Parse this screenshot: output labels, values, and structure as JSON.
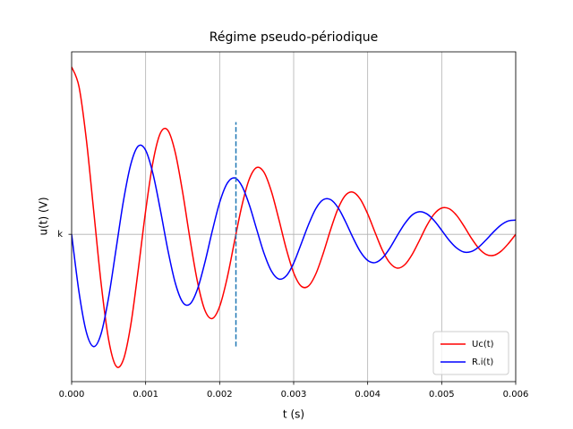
{
  "chart_data": {
    "type": "line",
    "title": "Régime pseudo-périodique",
    "x_label": "t (s)",
    "y_label": "u(t) (V)",
    "x": [
      0,
      0.0001,
      0.0002,
      0.0003,
      0.0004,
      0.0005,
      0.0006,
      0.0007,
      0.0008,
      0.0009,
      0.001,
      0.0011,
      0.0012,
      0.0013,
      0.0014,
      0.0015,
      0.0016,
      0.0017,
      0.0018,
      0.0019,
      0.002,
      0.0021,
      0.0022,
      0.0023,
      0.0024,
      0.0025,
      0.0026,
      0.0027,
      0.0028,
      0.0029,
      0.003,
      0.0031,
      0.0032,
      0.0033,
      0.0034,
      0.0035,
      0.0036,
      0.0037,
      0.0038,
      0.0039,
      0.004,
      0.0041,
      0.0042,
      0.0043,
      0.0044,
      0.0045,
      0.0046,
      0.0047,
      0.0048,
      0.0049,
      0.005,
      0.0051,
      0.0052,
      0.0053,
      0.0054,
      0.0055,
      0.0056,
      0.0057,
      0.0058,
      0.0059,
      0.006
    ],
    "series": [
      {
        "name": "Uc(t)",
        "color": "#ff0000",
        "values": [
          1.0,
          0.881,
          0.562,
          0.132,
          -0.299,
          -0.629,
          -0.787,
          -0.748,
          -0.539,
          -0.212,
          0.14,
          0.434,
          0.605,
          0.621,
          0.489,
          0.251,
          -0.03,
          -0.283,
          -0.453,
          -0.503,
          -0.431,
          -0.264,
          -0.044,
          0.17,
          0.329,
          0.399,
          0.37,
          0.255,
          0.089,
          -0.087,
          -0.23,
          -0.309,
          -0.309,
          -0.236,
          -0.113,
          0.029,
          0.154,
          0.233,
          0.252,
          0.21,
          0.122,
          0.011,
          -0.096,
          -0.171,
          -0.202,
          -0.182,
          -0.121,
          -0.036,
          0.053,
          0.122,
          0.157,
          0.153,
          0.114,
          0.05,
          -0.022,
          -0.083,
          -0.12,
          -0.126,
          -0.102,
          -0.056,
          0.0
        ]
      },
      {
        "name": "R.i(t)",
        "color": "#0000ff",
        "values": [
          0,
          -0.346,
          -0.586,
          -0.671,
          -0.591,
          -0.377,
          -0.09,
          0.199,
          0.419,
          0.527,
          0.502,
          0.36,
          0.143,
          -0.093,
          -0.29,
          -0.405,
          -0.416,
          -0.328,
          -0.169,
          0.019,
          0.19,
          0.303,
          0.337,
          0.289,
          0.177,
          0.03,
          -0.114,
          -0.22,
          -0.267,
          -0.248,
          -0.172,
          -0.059,
          0.057,
          0.154,
          0.207,
          0.207,
          0.159,
          0.076,
          -0.019,
          -0.103,
          -0.156,
          -0.169,
          -0.141,
          -0.082,
          -0.007,
          0.063,
          0.115,
          0.135,
          0.122,
          0.081,
          0.024,
          -0.035,
          -0.081,
          -0.106,
          -0.103,
          -0.076,
          -0.033,
          0.014,
          0.055,
          0.08,
          0.085
        ]
      }
    ],
    "vline": {
      "x": 0.00222,
      "ymin": -0.67,
      "ymax": 0.67,
      "color": "#1f77b4"
    },
    "xlim": [
      0,
      0.006
    ],
    "xticks": [
      {
        "value": 0,
        "label": "0.000"
      },
      {
        "value": 0.001,
        "label": "0.001"
      },
      {
        "value": 0.002,
        "label": "0.002"
      },
      {
        "value": 0.003,
        "label": "0.003"
      },
      {
        "value": 0.004,
        "label": "0.004"
      },
      {
        "value": 0.005,
        "label": "0.005"
      },
      {
        "value": 0.006,
        "label": "0.006"
      }
    ],
    "ylim": [
      -0.88,
      1.09
    ],
    "yticks": [
      {
        "value": 0,
        "label": "k"
      }
    ],
    "grid": true,
    "legend": "lower right"
  }
}
